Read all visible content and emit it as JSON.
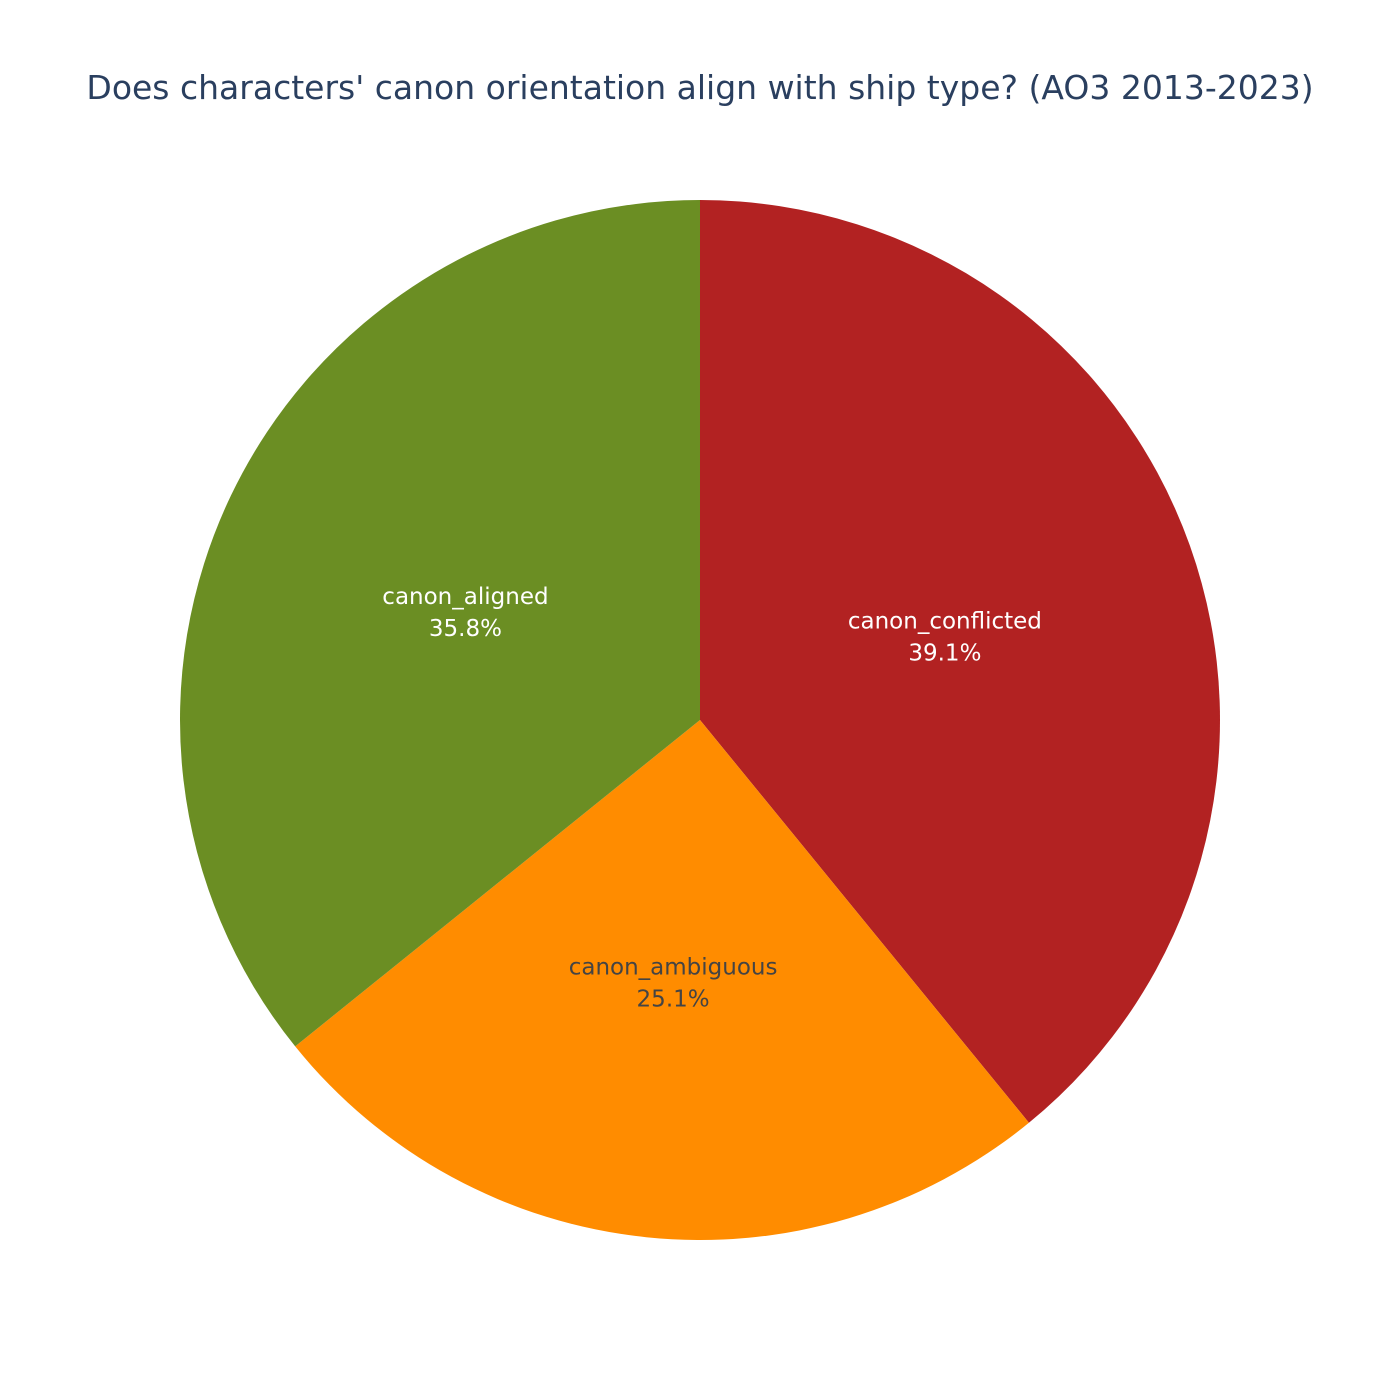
{
  "chart_data": {
    "type": "pie",
    "title": "Does characters' canon orientation align with ship type? (AO3 2013-2023)",
    "direction": "clockwise",
    "start": "top",
    "slices": [
      {
        "label": "canon_conflicted",
        "value": 39.1,
        "percent_label": "39.1%",
        "color": "#b22222",
        "text_color": "#ffffff"
      },
      {
        "label": "canon_ambiguous",
        "value": 25.1,
        "percent_label": "25.1%",
        "color": "#ff8c00",
        "text_color": "#444444"
      },
      {
        "label": "canon_aligned",
        "value": 35.8,
        "percent_label": "35.8%",
        "color": "#6b8e23",
        "text_color": "#ffffff"
      }
    ]
  }
}
